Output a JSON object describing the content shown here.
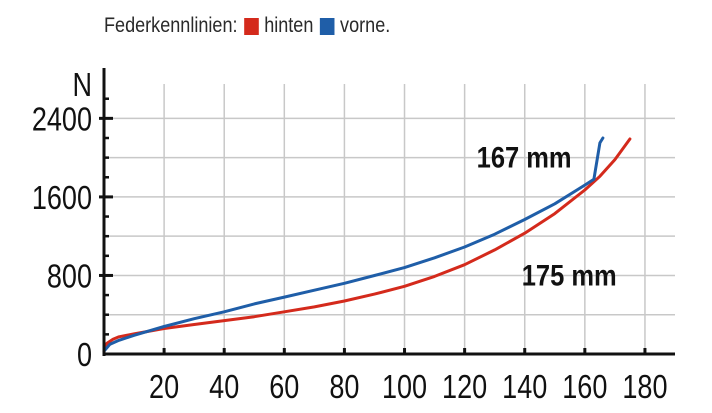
{
  "legend": {
    "title": "Federkennlinien:",
    "items": [
      {
        "label": "hinten",
        "color": "#d42a1c"
      },
      {
        "label": "vorne.",
        "color": "#1f5ea8"
      }
    ]
  },
  "chart_data": {
    "type": "line",
    "title": "Federkennlinien:",
    "ylabel": "N",
    "xlabel": "",
    "xlim": [
      0,
      190
    ],
    "ylim": [
      0,
      2750
    ],
    "xticks": [
      20,
      40,
      60,
      80,
      100,
      120,
      140,
      160,
      180
    ],
    "yticks": [
      0,
      800,
      1600,
      2400
    ],
    "grid": true,
    "legend_position": "top-left",
    "series": [
      {
        "name": "hinten",
        "color": "#d42a1c",
        "x": [
          0,
          1,
          3,
          5,
          10,
          20,
          30,
          40,
          50,
          60,
          70,
          80,
          90,
          100,
          110,
          120,
          130,
          140,
          150,
          160,
          165,
          170,
          175
        ],
        "y": [
          30,
          110,
          150,
          175,
          205,
          260,
          300,
          340,
          380,
          430,
          480,
          540,
          610,
          690,
          790,
          910,
          1060,
          1230,
          1430,
          1670,
          1810,
          1980,
          2190
        ]
      },
      {
        "name": "vorne.",
        "color": "#1f5ea8",
        "x": [
          0,
          2,
          5,
          10,
          20,
          30,
          40,
          50,
          60,
          70,
          80,
          90,
          100,
          110,
          120,
          130,
          140,
          150,
          160,
          163,
          165,
          166
        ],
        "y": [
          30,
          100,
          140,
          190,
          280,
          360,
          430,
          510,
          580,
          650,
          720,
          800,
          880,
          980,
          1090,
          1220,
          1370,
          1530,
          1720,
          1780,
          2150,
          2200
        ]
      }
    ],
    "annotations": [
      {
        "text": "167 mm",
        "x": 124,
        "y": 1900
      },
      {
        "text": "175 mm",
        "x": 139,
        "y": 700
      }
    ]
  }
}
